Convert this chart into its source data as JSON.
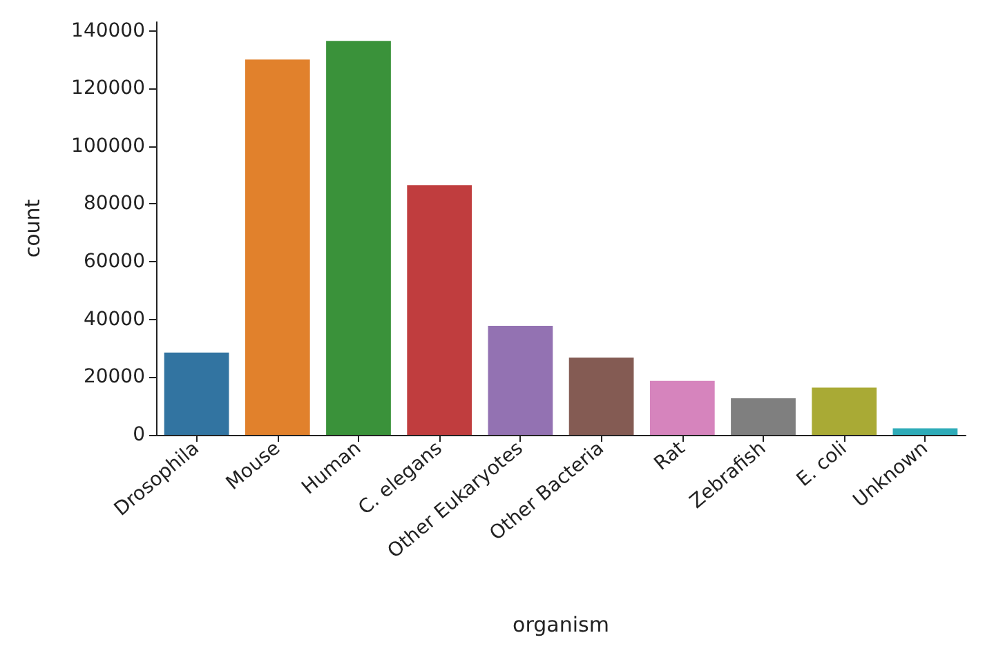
{
  "chart_data": {
    "type": "bar",
    "xlabel": "organism",
    "ylabel": "count",
    "categories": [
      "Drosophila",
      "Mouse",
      "Human",
      "C. elegans",
      "Other Eukaryotes",
      "Other Bacteria",
      "Rat",
      "Zebrafish",
      "E. coli",
      "Unknown"
    ],
    "values": [
      28500,
      130000,
      136500,
      86500,
      37800,
      26800,
      18700,
      12700,
      16400,
      2300
    ],
    "colors": [
      "#3274a1",
      "#e1812c",
      "#3a923a",
      "#c03d3e",
      "#9372b2",
      "#845b53",
      "#d684bd",
      "#7f7f7f",
      "#a9aa35",
      "#2eabb8"
    ],
    "ylim": [
      0,
      143000
    ],
    "yticks": [
      0,
      20000,
      40000,
      60000,
      80000,
      100000,
      120000,
      140000
    ],
    "grid": false
  }
}
